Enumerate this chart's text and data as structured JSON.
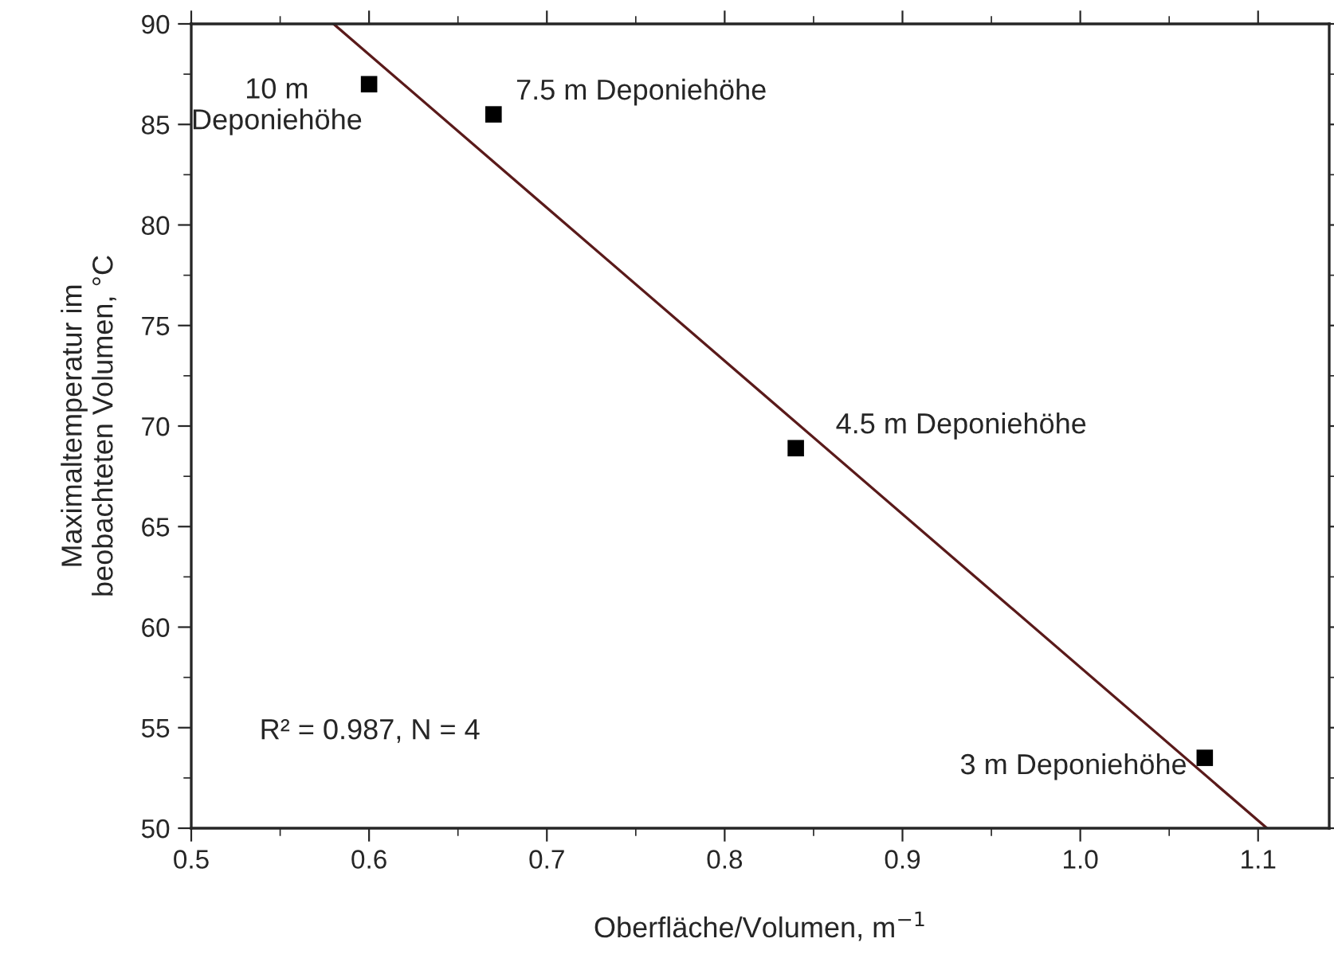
{
  "chart_data": {
    "type": "scatter",
    "xlabel": "Oberfläche/Volumen, m$^{−1}$",
    "ylabel": "Maximaltemperatur im\nbeobachteten Volumen, °C",
    "series": [
      {
        "color": "#000000",
        "marker": "square",
        "x": [
          0.6,
          0.67,
          0.84,
          1.07
        ],
        "values": [
          87,
          85.5,
          68.9,
          53.5
        ]
      },
      {
        "type": "line",
        "color": "#5a1a1a",
        "line_style": "solid",
        "x": [
          0.58,
          1.105
        ],
        "values": [
          90,
          50
        ]
      }
    ],
    "annotations": [
      {
        "text": "10 m\nDeponiehöhe",
        "x": 0.6,
        "y": 87
      },
      {
        "text": "7.5 m Deponiehöhe",
        "x": 0.67,
        "y": 85.5
      },
      {
        "text": "4.5 m Deponiehöhe",
        "x": 0.84,
        "y": 68.9
      },
      {
        "text": "3 m Deponiehöhe",
        "x": 1.07,
        "y": 53.5
      },
      "R² = 0.987, N = 4"
    ],
    "xlim": [
      0.5,
      1.14
    ],
    "xticks": [
      {
        "value": 0.5,
        "label": "0.5"
      },
      {
        "value": 0.6,
        "label": "0.6"
      },
      {
        "value": 0.7,
        "label": "0.7"
      },
      {
        "value": 0.8,
        "label": "0.8"
      },
      {
        "value": 0.9,
        "label": "0.9"
      },
      {
        "value": 1.0,
        "label": "1.0"
      },
      {
        "value": 1.1,
        "label": "1.1"
      }
    ],
    "ylim": [
      50,
      90
    ],
    "yticks": [
      50,
      55,
      60,
      65,
      70,
      75,
      80,
      85,
      90
    ],
    "grid": false,
    "legend": false
  }
}
